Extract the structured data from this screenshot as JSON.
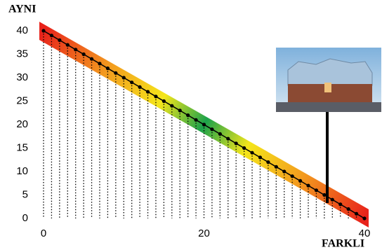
{
  "chart_data": {
    "type": "line",
    "y_label": "AYNI",
    "x_label": "FARKLI",
    "x": [
      0,
      1,
      2,
      3,
      4,
      5,
      6,
      7,
      8,
      9,
      10,
      11,
      12,
      13,
      14,
      15,
      16,
      17,
      18,
      19,
      20,
      21,
      22,
      23,
      24,
      25,
      26,
      27,
      28,
      29,
      30,
      31,
      32,
      33,
      34,
      35,
      36,
      37,
      38,
      39,
      40
    ],
    "series": [
      {
        "color": "#000000",
        "values": [
          40,
          39,
          38,
          37,
          36,
          35,
          34,
          33,
          32,
          31,
          30,
          29,
          28,
          27,
          26,
          25,
          24,
          23,
          22,
          21,
          20,
          19,
          18,
          17,
          16,
          15,
          14,
          13,
          12,
          11,
          10,
          9,
          8,
          7,
          6,
          5,
          4,
          3,
          2,
          1,
          0
        ]
      }
    ],
    "xlim": [
      0,
      40
    ],
    "ylim": [
      0,
      40
    ],
    "xticks": [
      0,
      20,
      40
    ],
    "yticks": [
      0,
      5,
      10,
      15,
      20,
      25,
      30,
      35,
      40
    ],
    "drop_lines": true
  }
}
